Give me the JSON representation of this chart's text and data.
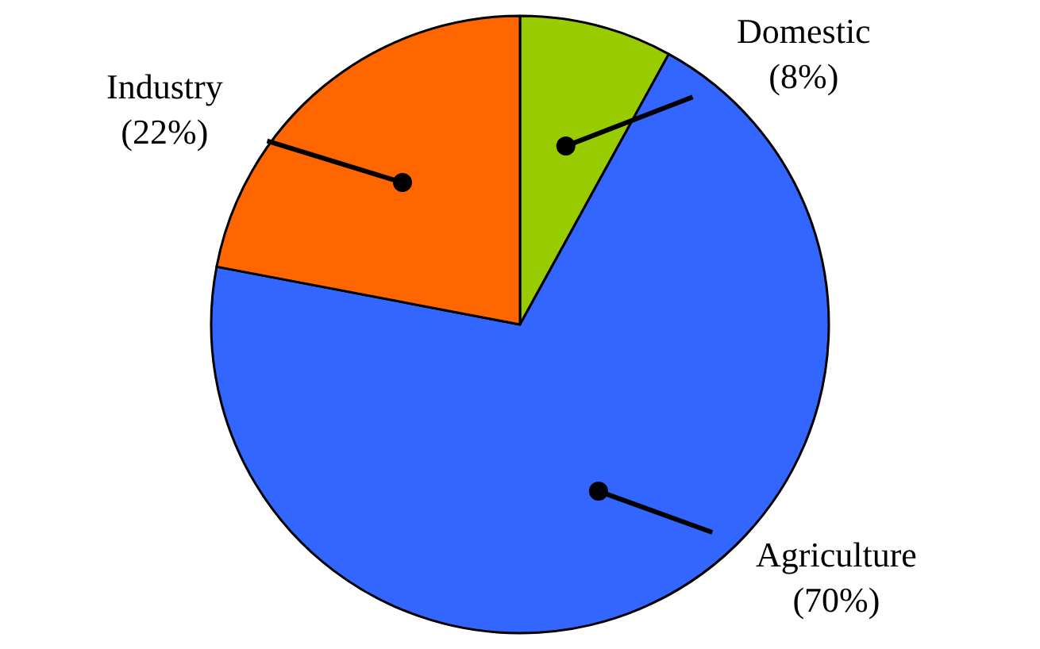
{
  "chart_data": {
    "type": "pie",
    "categories": [
      "Domestic",
      "Agriculture",
      "Industry"
    ],
    "values": [
      8,
      70,
      22
    ],
    "colors": [
      "#99cc00",
      "#3366ff",
      "#ff6600"
    ],
    "value_labels": [
      "(8%)",
      "(70%)",
      "(22%)"
    ],
    "legend": false
  }
}
